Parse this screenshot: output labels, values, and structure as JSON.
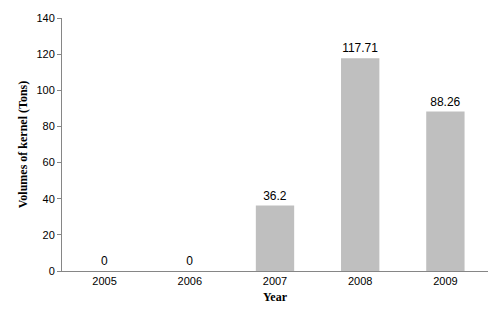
{
  "chart_data": {
    "type": "bar",
    "categories": [
      "2005",
      "2006",
      "2007",
      "2008",
      "2009"
    ],
    "values": [
      0,
      0,
      36.2,
      117.71,
      88.26
    ],
    "color": "#bfbfbf",
    "x_label": "Year",
    "y_label": "Volumes of kernel (Tons)",
    "ylim": [
      0,
      140
    ],
    "yticks": [
      0,
      20,
      40,
      60,
      80,
      100,
      120,
      140
    ],
    "grid": false,
    "data_labels": true
  }
}
